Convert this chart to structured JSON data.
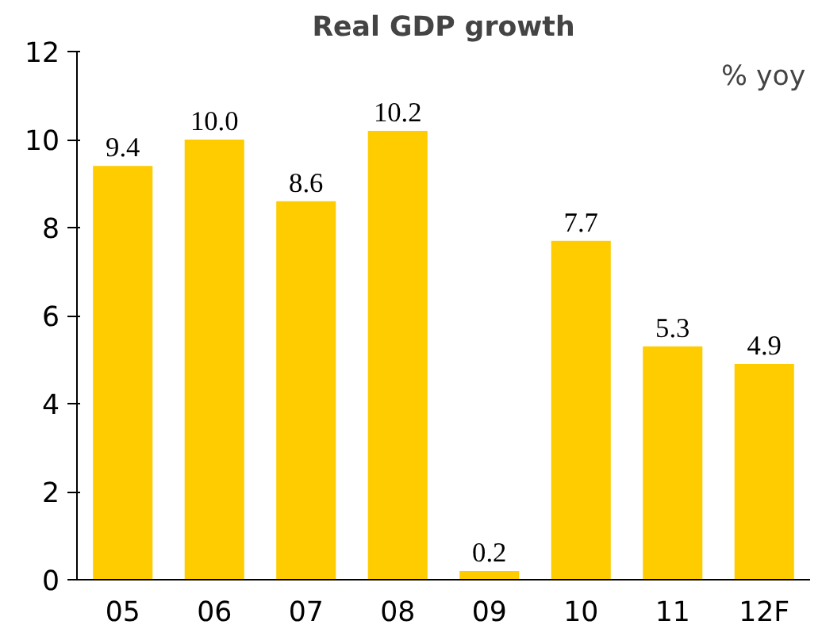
{
  "chart_data": {
    "type": "bar",
    "title": "Real GDP growth",
    "categories": [
      "05",
      "06",
      "07",
      "08",
      "09",
      "10",
      "11",
      "12F"
    ],
    "values": [
      9.4,
      10.0,
      8.6,
      10.2,
      0.2,
      7.7,
      5.3,
      4.9
    ],
    "value_labels": [
      "9.4",
      "10.0",
      "8.6",
      "10.2",
      "0.2",
      "7.7",
      "5.3",
      "4.9"
    ],
    "color": "#ffcc00",
    "ylim": [
      0,
      12
    ],
    "yticks": [
      0,
      2,
      4,
      6,
      8,
      10,
      12
    ],
    "grid": false,
    "annotations": [
      "% yoy"
    ]
  }
}
